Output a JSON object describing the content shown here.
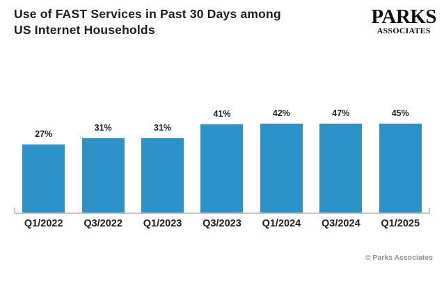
{
  "header": {
    "title_line1": "Use of FAST Services in Past 30 Days among",
    "title_line2": "US Internet Households",
    "logo_primary": "PARKS",
    "logo_secondary": "ASSOCIATES"
  },
  "footer": {
    "copyright": "© Parks Associates"
  },
  "colors": {
    "bar": "#2C92C7",
    "title_text": "#1C1C1C",
    "axis": "#C4C4C4",
    "footer_text": "#8D8D8D",
    "background": "#FFFFFF"
  },
  "chart_data": {
    "type": "bar",
    "title": "Use of FAST Services in Past 30 Days among US Internet Households",
    "categories": [
      "Q1/2022",
      "Q3/2022",
      "Q1/2023",
      "Q3/2023",
      "Q1/2024",
      "Q3/2024",
      "Q1/2025"
    ],
    "values": [
      27,
      31,
      31,
      41,
      42,
      47,
      45
    ],
    "data_labels": [
      "27%",
      "31%",
      "31%",
      "41%",
      "42%",
      "47%",
      "45%"
    ],
    "unit": "%",
    "xlabel": "",
    "ylabel": "",
    "ylim": [
      -20.5,
      52
    ],
    "grid": false,
    "legend": false,
    "bar_color": "#2C92C7",
    "label_position": "above-bars",
    "source_note": "© Parks Associates"
  }
}
